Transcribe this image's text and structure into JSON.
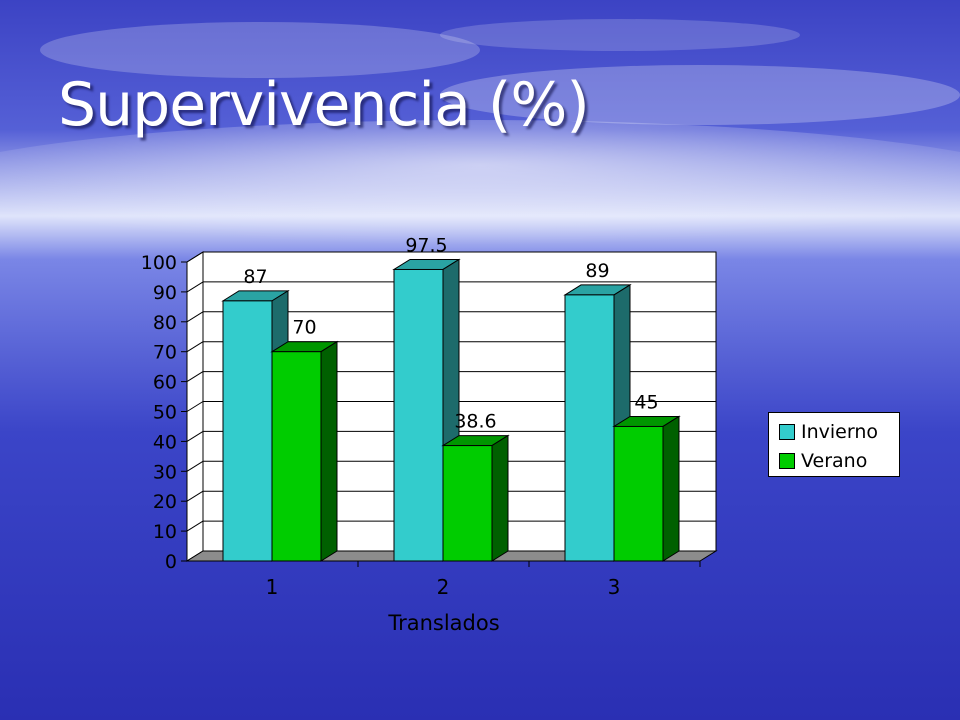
{
  "slide": {
    "title": "Supervivencia (%)"
  },
  "colors": {
    "invierno_front": "#33cccc",
    "invierno_side": "#1d6b6b",
    "invierno_top": "#2aa3a3",
    "verano_front": "#00cc00",
    "verano_side": "#006000",
    "verano_top": "#009600",
    "floor": "#8c8c8c",
    "plot_bg": "#ffffff",
    "grid": "#000000"
  },
  "chart_data": {
    "type": "bar",
    "title": "",
    "xlabel": "Translados",
    "ylabel": "",
    "ylim": [
      0,
      100
    ],
    "yticks": [
      "0",
      "10",
      "20",
      "30",
      "40",
      "50",
      "60",
      "70",
      "80",
      "90",
      "100"
    ],
    "categories": [
      "1",
      "2",
      "3"
    ],
    "series": [
      {
        "name": "Invierno",
        "values": [
          87,
          97.5,
          89
        ],
        "labels": [
          "87",
          "97.5",
          "89"
        ]
      },
      {
        "name": "Verano",
        "values": [
          70,
          38.6,
          45
        ],
        "labels": [
          "70",
          "38.6",
          "45"
        ]
      }
    ],
    "legend_position": "right",
    "grid": true
  }
}
